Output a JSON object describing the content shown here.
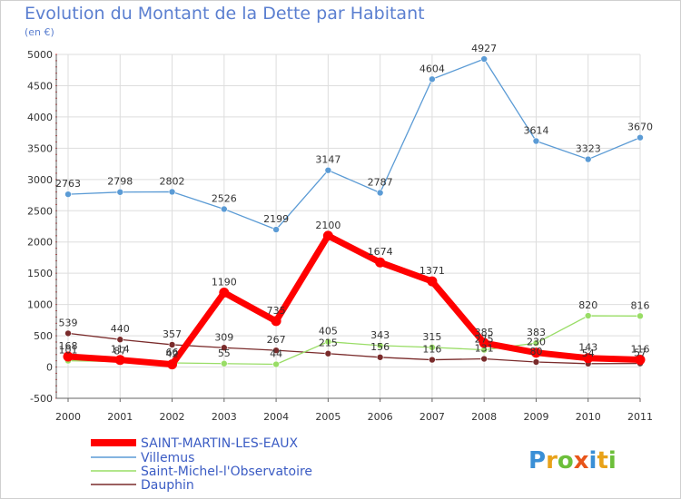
{
  "title": "Evolution du Montant de la Dette par Habitant",
  "unit": "(en €)",
  "logo_text": "Prox i ti",
  "colors": {
    "title": "#5b7fd0",
    "grid": "#dddddd"
  },
  "chart_data": {
    "type": "line",
    "x": [
      "2000",
      "2001",
      "2002",
      "2003",
      "2004",
      "2005",
      "2006",
      "2007",
      "2008",
      "2009",
      "2010",
      "2011"
    ],
    "ylim": [
      -500,
      5000
    ],
    "yticks": [
      "-500",
      "0",
      "500",
      "1000",
      "1500",
      "2000",
      "2500",
      "3000",
      "3500",
      "4000",
      "4500",
      "5000"
    ],
    "grid": true,
    "legend_position": "bottom-left",
    "series": [
      {
        "name": "SAINT-MARTIN-LES-EAUX",
        "color": "#ff0000",
        "values": [
          168,
          114,
          42,
          1190,
          735,
          2100,
          1674,
          1371,
          385,
          230,
          143,
          116
        ],
        "labels": [
          "168",
          "114",
          "42",
          "1190",
          "735",
          "2100",
          "1674",
          "1371",
          "385",
          "230",
          "143",
          "116"
        ]
      },
      {
        "name": "Villemus",
        "color": "#5b9bd5",
        "values": [
          2763,
          2798,
          2802,
          2526,
          2199,
          3147,
          2787,
          4604,
          4927,
          3614,
          3323,
          3670
        ],
        "labels": [
          "2763",
          "2798",
          "2802",
          "2526",
          "2199",
          "3147",
          "2787",
          "4604",
          "4927",
          "3614",
          "3323",
          "3670"
        ]
      },
      {
        "name": "Saint-Michel-l'Observatoire",
        "color": "#99dd66",
        "values": [
          101,
          87,
          66,
          55,
          44,
          405,
          343,
          315,
          275,
          383,
          820,
          816
        ],
        "labels": [
          "101",
          "87",
          "66",
          "55",
          "44",
          "405",
          "343",
          "315",
          "275",
          "383",
          "820",
          "816"
        ]
      },
      {
        "name": "Dauphin",
        "color": "#7a2b2b",
        "values": [
          539,
          440,
          357,
          309,
          267,
          215,
          156,
          116,
          131,
          80,
          54,
          57
        ],
        "labels": [
          "539",
          "440",
          "357",
          "309",
          "267",
          "215",
          "156",
          "116",
          "131",
          "80",
          "54",
          "57"
        ]
      }
    ]
  }
}
